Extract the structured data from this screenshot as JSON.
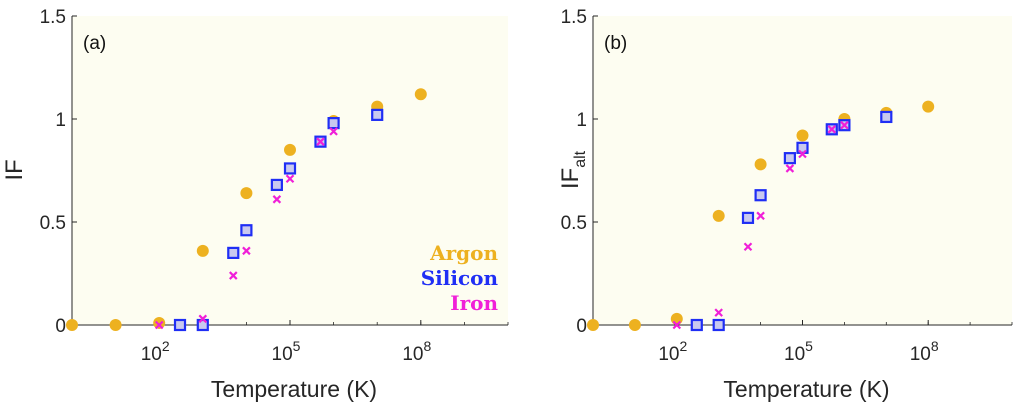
{
  "chart_data": [
    {
      "panel": "(a)",
      "type": "scatter",
      "xscale": "log",
      "xlabel": "Temperature (K)",
      "ylabel": "IF",
      "ylabel_sub": "",
      "xlim": [
        1,
        10000000000
      ],
      "ylim": [
        0,
        1.5
      ],
      "xticks": [
        100,
        100000,
        100000000
      ],
      "xtick_labels": [
        {
          "base": "10",
          "exp": "2"
        },
        {
          "base": "10",
          "exp": "5"
        },
        {
          "base": "10",
          "exp": "8"
        }
      ],
      "yticks": [
        "0",
        "0.5",
        "1",
        "1.5"
      ],
      "grid": false,
      "background": "#fdfdf1",
      "series": [
        {
          "name": "Argon",
          "color": "#edb120",
          "marker": "circle",
          "points": [
            [
              1,
              0
            ],
            [
              10,
              0
            ],
            [
              100,
              0.01
            ],
            [
              1000,
              0.36
            ],
            [
              10000,
              0.64
            ],
            [
              100000,
              0.85
            ],
            [
              1000000,
              0.99
            ],
            [
              10000000,
              1.06
            ],
            [
              100000000,
              1.12
            ]
          ]
        },
        {
          "name": "Silicon",
          "color": "#1f2ef5",
          "marker": "square",
          "points": [
            [
              300,
              0
            ],
            [
              1000,
              0
            ],
            [
              5000,
              0.35
            ],
            [
              10000,
              0.46
            ],
            [
              50000,
              0.68
            ],
            [
              100000,
              0.76
            ],
            [
              500000,
              0.89
            ],
            [
              1000000,
              0.98
            ],
            [
              10000000,
              1.02
            ]
          ]
        },
        {
          "name": "Iron",
          "color": "#f020d8",
          "marker": "x",
          "points": [
            [
              100,
              0
            ],
            [
              1000,
              0.03
            ],
            [
              5000,
              0.24
            ],
            [
              10000,
              0.36
            ],
            [
              50000,
              0.61
            ],
            [
              100000,
              0.71
            ],
            [
              500000,
              0.89
            ],
            [
              1000000,
              0.94
            ]
          ]
        }
      ],
      "legend": [
        {
          "label": "Argon",
          "color": "#edb120"
        },
        {
          "label": "Silicon",
          "color": "#1f2ef5"
        },
        {
          "label": "Iron",
          "color": "#f020d8"
        }
      ]
    },
    {
      "panel": "(b)",
      "type": "scatter",
      "xscale": "log",
      "xlabel": "Temperature (K)",
      "ylabel": "IF",
      "ylabel_sub": "alt",
      "xlim": [
        1,
        10000000000
      ],
      "ylim": [
        0,
        1.5
      ],
      "xticks": [
        100,
        100000,
        100000000
      ],
      "xtick_labels": [
        {
          "base": "10",
          "exp": "2"
        },
        {
          "base": "10",
          "exp": "5"
        },
        {
          "base": "10",
          "exp": "8"
        }
      ],
      "yticks": [
        "0",
        "0.5",
        "1",
        "1.5"
      ],
      "grid": false,
      "background": "#fdfdf1",
      "series": [
        {
          "name": "Argon",
          "color": "#edb120",
          "marker": "circle",
          "points": [
            [
              1,
              0
            ],
            [
              10,
              0
            ],
            [
              100,
              0.03
            ],
            [
              1000,
              0.53
            ],
            [
              10000,
              0.78
            ],
            [
              100000,
              0.92
            ],
            [
              1000000,
              1.0
            ],
            [
              10000000,
              1.03
            ],
            [
              100000000,
              1.06
            ]
          ]
        },
        {
          "name": "Silicon",
          "color": "#1f2ef5",
          "marker": "square",
          "points": [
            [
              300,
              0
            ],
            [
              1000,
              0
            ],
            [
              5000,
              0.52
            ],
            [
              10000,
              0.63
            ],
            [
              50000,
              0.81
            ],
            [
              100000,
              0.86
            ],
            [
              500000,
              0.95
            ],
            [
              1000000,
              0.97
            ],
            [
              10000000,
              1.01
            ]
          ]
        },
        {
          "name": "Iron",
          "color": "#f020d8",
          "marker": "x",
          "points": [
            [
              100,
              0
            ],
            [
              1000,
              0.06
            ],
            [
              5000,
              0.38
            ],
            [
              10000,
              0.53
            ],
            [
              50000,
              0.76
            ],
            [
              100000,
              0.83
            ],
            [
              500000,
              0.95
            ],
            [
              1000000,
              0.97
            ]
          ]
        }
      ],
      "legend": []
    }
  ]
}
